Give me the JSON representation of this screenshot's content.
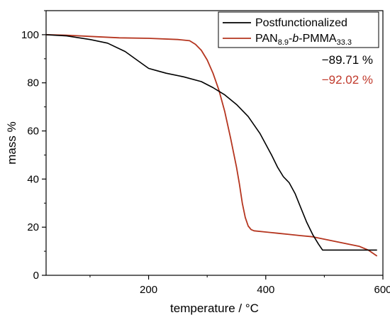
{
  "chart_data": {
    "type": "line",
    "xlabel": "temperature / °C",
    "ylabel": "mass %",
    "xlim": [
      25,
      600
    ],
    "ylim": [
      0,
      110
    ],
    "x_ticks": [
      200,
      400,
      600
    ],
    "y_ticks": [
      0,
      20,
      40,
      60,
      80,
      100
    ],
    "grid": false,
    "legend_position": "top-right",
    "series": [
      {
        "name": "Postfunctionalized",
        "color": "#000000",
        "x": [
          25,
          60,
          100,
          130,
          160,
          180,
          200,
          215,
          230,
          260,
          290,
          310,
          330,
          350,
          370,
          390,
          410,
          420,
          430,
          440,
          450,
          460,
          470,
          480,
          490,
          497,
          510,
          540,
          570,
          590
        ],
        "y": [
          100,
          99.5,
          98,
          96.5,
          93,
          89.5,
          86,
          85,
          84,
          82.5,
          80.5,
          78,
          75,
          71,
          66,
          59,
          50,
          45,
          41,
          38.5,
          34,
          28,
          22,
          17,
          13,
          10.5,
          10.5,
          10.5,
          10.5,
          10.5
        ]
      },
      {
        "name_parts": [
          "PAN",
          "8.9",
          "-",
          "b",
          "-PMMA",
          "33.3"
        ],
        "color": "#b5351f",
        "x": [
          25,
          60,
          100,
          150,
          200,
          250,
          270,
          280,
          290,
          300,
          310,
          320,
          330,
          340,
          350,
          355,
          360,
          365,
          370,
          375,
          380,
          400,
          420,
          440,
          460,
          480,
          500,
          520,
          540,
          560,
          575,
          590
        ],
        "y": [
          100,
          99.8,
          99.3,
          98.7,
          98.5,
          98,
          97.5,
          96,
          93.5,
          89.5,
          84,
          77,
          68,
          57,
          45,
          38,
          30,
          24,
          20.5,
          19,
          18.5,
          18,
          17.5,
          17,
          16.5,
          16,
          15,
          14,
          13,
          12,
          10.5,
          8
        ]
      }
    ],
    "annotations": [
      {
        "text": "−89.71 %",
        "color": "#000000"
      },
      {
        "text": "−92.02 %",
        "color": "#c0392b"
      }
    ]
  }
}
